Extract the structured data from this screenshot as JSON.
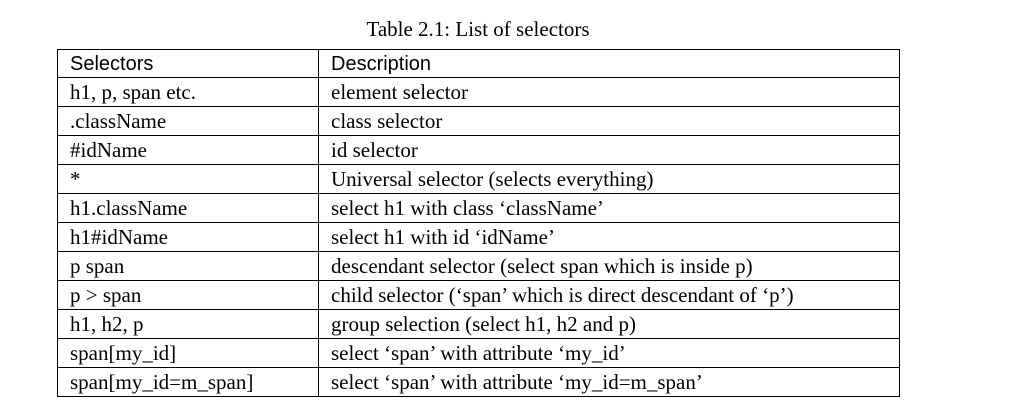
{
  "caption": "Table 2.1: List of selectors",
  "table": {
    "headers": [
      "Selectors",
      "Description"
    ],
    "rows": [
      [
        "h1, p, span etc.",
        "element selector"
      ],
      [
        ".className",
        "class selector"
      ],
      [
        "#idName",
        "id selector"
      ],
      [
        "*",
        "Universal selector (selects everything)"
      ],
      [
        "h1.className",
        "select h1 with class ‘className’"
      ],
      [
        "h1#idName",
        "select h1 with id ‘idName’"
      ],
      [
        "p span",
        "descendant selector (select span which is inside p)"
      ],
      [
        "p > span",
        "child selector (‘span’ which is direct descendant of ‘p’)"
      ],
      [
        "h1, h2, p",
        "group selection (select h1, h2 and p)"
      ],
      [
        "span[my_id]",
        "select ‘span’ with attribute ‘my_id’"
      ],
      [
        "span[my_id=m_span]",
        "select ‘span’ with attribute ‘my_id=m_span’"
      ]
    ]
  }
}
